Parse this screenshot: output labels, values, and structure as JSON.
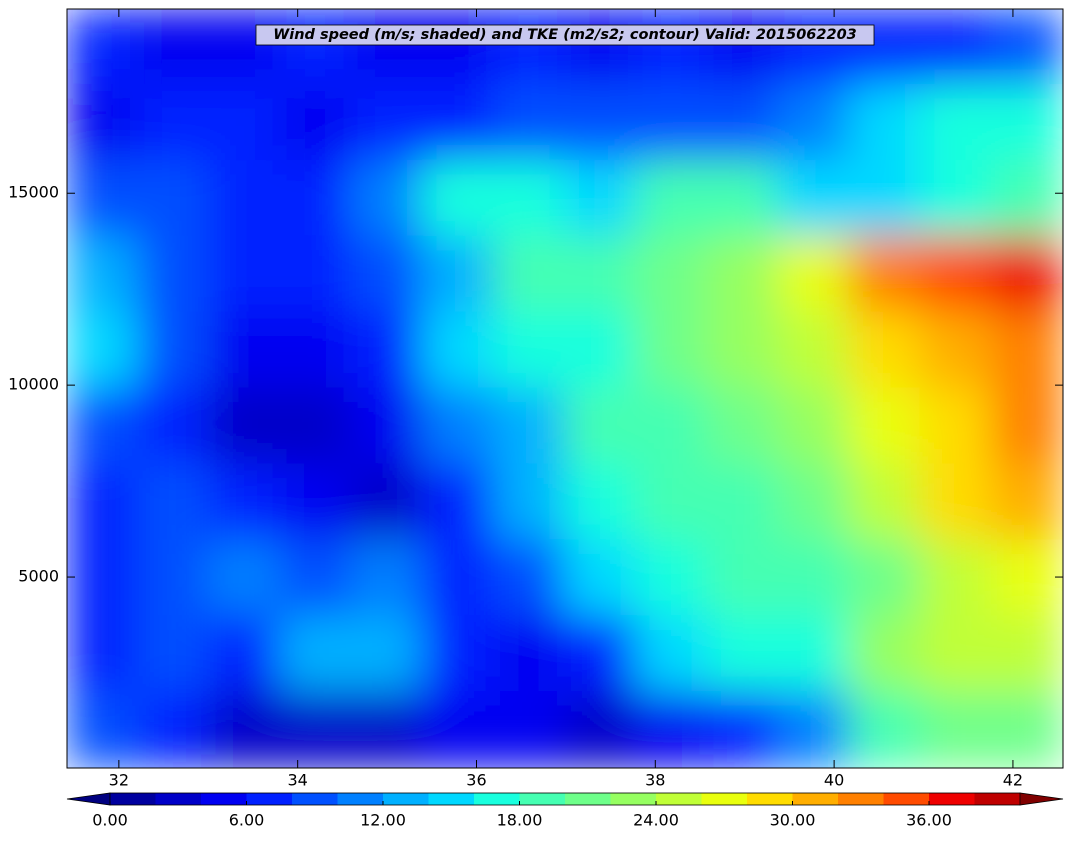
{
  "chart_data": {
    "type": "contourf",
    "title": "Wind speed (m/s; shaded) and TKE (m2/s2; contour) Valid: 2015062203",
    "xlim": [
      31.42,
      42.56
    ],
    "ylim": [
      25,
      19800
    ],
    "xticks": [
      32,
      34,
      36,
      38,
      40,
      42
    ],
    "yticks": [
      5000,
      10000,
      15000
    ],
    "z": [
      [
        6,
        5,
        5,
        6,
        5,
        5,
        6,
        5,
        6,
        5,
        6,
        6,
        6,
        8
      ],
      [
        4,
        6,
        6,
        5,
        6,
        7,
        8,
        8,
        8,
        9,
        11,
        14,
        16,
        17
      ],
      [
        8,
        8,
        6,
        7,
        10,
        16,
        16,
        14,
        18,
        18,
        14,
        14,
        16,
        19
      ],
      [
        12,
        8,
        6,
        6,
        8,
        13,
        18,
        19,
        20,
        22,
        26,
        32,
        35,
        37
      ],
      [
        15,
        9,
        5,
        5,
        7,
        14,
        17,
        17,
        20,
        22,
        25,
        28,
        30,
        32
      ],
      [
        8,
        7,
        3,
        3,
        5,
        11,
        12,
        18,
        18,
        20,
        22,
        26,
        28,
        32
      ],
      [
        6,
        8,
        6,
        4,
        3,
        7,
        12,
        17,
        19,
        19,
        20,
        24,
        28,
        31
      ],
      [
        6,
        9,
        10,
        9,
        10,
        7,
        9,
        14,
        17,
        18,
        18,
        21,
        24,
        27
      ],
      [
        7,
        8,
        7,
        12,
        12,
        7,
        4,
        7,
        14,
        16,
        17,
        22,
        24,
        25
      ],
      [
        9,
        6,
        3,
        3,
        3,
        4,
        4,
        3,
        4,
        6,
        10,
        18,
        20,
        20
      ]
    ],
    "colorbar": {
      "levels": [
        0,
        2,
        4,
        6,
        8,
        10,
        12,
        14,
        16,
        18,
        20,
        22,
        24,
        26,
        28,
        30,
        32,
        34,
        36,
        38,
        40
      ],
      "colors": [
        "#00009f",
        "#0000c8",
        "#0000f1",
        "#0020ff",
        "#0050ff",
        "#0080ff",
        "#00b0ff",
        "#00d8ff",
        "#19ffde",
        "#45ffb2",
        "#6eff8a",
        "#96ff61",
        "#c0ff37",
        "#e9ff0e",
        "#ffdc00",
        "#ffae00",
        "#ff8000",
        "#ff4b00",
        "#ee0000",
        "#bf0000"
      ],
      "under_color": "#000080",
      "over_color": "#800000",
      "ticks": [
        {
          "value": 0,
          "label": "0.00"
        },
        {
          "value": 6,
          "label": "6.00"
        },
        {
          "value": 12,
          "label": "12.00"
        },
        {
          "value": 18,
          "label": "18.00"
        },
        {
          "value": 24,
          "label": "24.00"
        },
        {
          "value": 30,
          "label": "30.00"
        },
        {
          "value": 36,
          "label": "36.00"
        }
      ]
    }
  }
}
